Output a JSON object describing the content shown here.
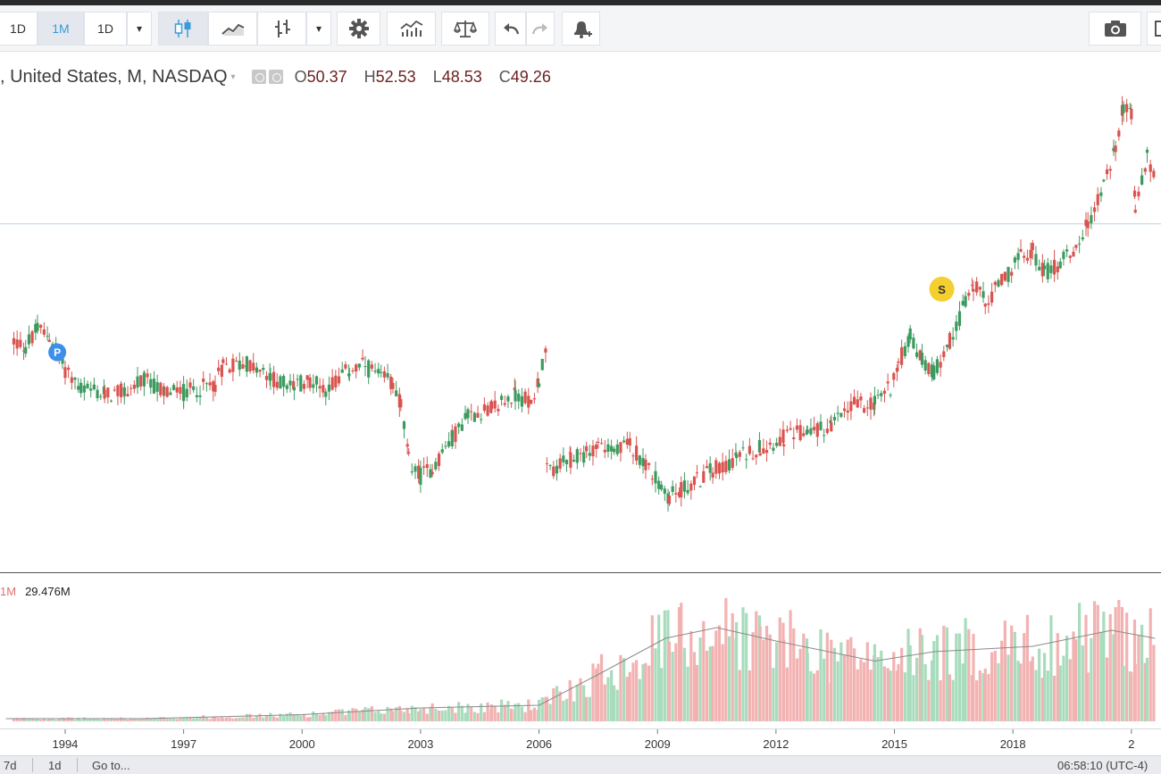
{
  "toolbar": {
    "interval_1": "1D",
    "interval_2": "1M",
    "interval_3": "1D",
    "dropdown_caret": "▾"
  },
  "legend": {
    "symbol": ", United States, M, NASDAQ",
    "caret": "▾",
    "open_key": "O",
    "open": "50.37",
    "high_key": "H",
    "high": "52.53",
    "low_key": "L",
    "low": "48.53",
    "close_key": "C",
    "close": "49.26"
  },
  "volume": {
    "key": "1M",
    "value": "29.476M"
  },
  "markers": {
    "p": "P",
    "s": "S"
  },
  "status": {
    "range_1": "7d",
    "range_2": "1d",
    "goto": "Go to...",
    "clock": "06:58:10 (UTC-4)"
  },
  "colors": {
    "up": "#3c9a5f",
    "down": "#d9534f",
    "vol_up": "#a8dcbc",
    "vol_down": "#f3b2b2",
    "hline": "#b7d3e6",
    "ma": "#8a8a8a",
    "marker_p": "#3d8fea",
    "marker_s": "#f3cf2f"
  },
  "chart_data": {
    "type": "candlestick",
    "x_ticks": [
      "1994",
      "1997",
      "2000",
      "2003",
      "2006",
      "2009",
      "2012",
      "2015",
      "2018",
      "2"
    ],
    "price_series": [
      {
        "year": 1992.7,
        "close": 30
      },
      {
        "year": 1993.0,
        "close": 29.5
      },
      {
        "year": 1993.3,
        "close": 31
      },
      {
        "year": 1993.6,
        "close": 30.5
      },
      {
        "year": 1994.0,
        "close": 27.5
      },
      {
        "year": 1994.4,
        "close": 25.8
      },
      {
        "year": 1995.0,
        "close": 25.2
      },
      {
        "year": 1995.5,
        "close": 25.5
      },
      {
        "year": 1996.0,
        "close": 26.5
      },
      {
        "year": 1996.5,
        "close": 25.5
      },
      {
        "year": 1997.0,
        "close": 25.4
      },
      {
        "year": 1997.8,
        "close": 26.2
      },
      {
        "year": 1998.0,
        "close": 27.8
      },
      {
        "year": 1998.6,
        "close": 28.0
      },
      {
        "year": 1999.2,
        "close": 26.6
      },
      {
        "year": 1999.8,
        "close": 26.0
      },
      {
        "year": 2000.2,
        "close": 26.6
      },
      {
        "year": 2000.6,
        "close": 25.8
      },
      {
        "year": 2001.2,
        "close": 27.4
      },
      {
        "year": 2001.6,
        "close": 27.8
      },
      {
        "year": 2002.0,
        "close": 26.6
      },
      {
        "year": 2002.3,
        "close": 26.4
      },
      {
        "year": 2002.5,
        "close": 24.4
      },
      {
        "year": 2002.7,
        "close": 19.4
      },
      {
        "year": 2003.0,
        "close": 18.0
      },
      {
        "year": 2003.3,
        "close": 18.8
      },
      {
        "year": 2003.8,
        "close": 21.4
      },
      {
        "year": 2004.2,
        "close": 23.4
      },
      {
        "year": 2004.8,
        "close": 24.0
      },
      {
        "year": 2005.4,
        "close": 25.2
      },
      {
        "year": 2005.8,
        "close": 24.6
      },
      {
        "year": 2006.0,
        "close": 26.6
      },
      {
        "year": 2006.2,
        "close": 29.6
      },
      {
        "year": 2006.3,
        "close": null
      },
      {
        "year": 2006.2,
        "close": 18.4
      },
      {
        "year": 2006.8,
        "close": 19.4
      },
      {
        "year": 2007.2,
        "close": 20.0
      },
      {
        "year": 2007.5,
        "close": 21.0
      },
      {
        "year": 2007.9,
        "close": 20.0
      },
      {
        "year": 2008.3,
        "close": 20.8
      },
      {
        "year": 2008.7,
        "close": 19.2
      },
      {
        "year": 2009.1,
        "close": 16.8
      },
      {
        "year": 2009.3,
        "close": 16.2
      },
      {
        "year": 2009.6,
        "close": 16.8
      },
      {
        "year": 2010.0,
        "close": 17.6
      },
      {
        "year": 2010.4,
        "close": 18.6
      },
      {
        "year": 2011.0,
        "close": 19.6
      },
      {
        "year": 2011.6,
        "close": 20.6
      },
      {
        "year": 2012.2,
        "close": 21.4
      },
      {
        "year": 2012.8,
        "close": 22.0
      },
      {
        "year": 2013.4,
        "close": 22.4
      },
      {
        "year": 2013.9,
        "close": 24.2
      },
      {
        "year": 2014.5,
        "close": 24.6
      },
      {
        "year": 2014.9,
        "close": 26.0
      },
      {
        "year": 2015.1,
        "close": 28.0
      },
      {
        "year": 2015.4,
        "close": 30.4
      },
      {
        "year": 2015.7,
        "close": 28.2
      },
      {
        "year": 2016.0,
        "close": 27.2
      },
      {
        "year": 2016.4,
        "close": 30.0
      },
      {
        "year": 2016.8,
        "close": 33.4
      },
      {
        "year": 2017.0,
        "close": 35.0
      },
      {
        "year": 2017.3,
        "close": 33.4
      },
      {
        "year": 2017.8,
        "close": 35.6
      },
      {
        "year": 2018.2,
        "close": 37.4
      },
      {
        "year": 2018.5,
        "close": 38.0
      },
      {
        "year": 2018.8,
        "close": 36.0
      },
      {
        "year": 2019.2,
        "close": 37.0
      },
      {
        "year": 2019.6,
        "close": 38.4
      },
      {
        "year": 2019.9,
        "close": 40.4
      },
      {
        "year": 2020.3,
        "close": 43.8
      },
      {
        "year": 2020.6,
        "close": 47.2
      },
      {
        "year": 2020.8,
        "close": 51.0
      },
      {
        "year": 2021.0,
        "close": 50.0
      },
      {
        "year": 2021.1,
        "close": 41.6
      },
      {
        "year": 2021.4,
        "close": 46.2
      },
      {
        "year": 2021.6,
        "close": 44.6
      }
    ],
    "volume_ma_relative": [
      {
        "year": 1992.5,
        "v": 0.02
      },
      {
        "year": 1996.0,
        "v": 0.02
      },
      {
        "year": 2000.0,
        "v": 0.05
      },
      {
        "year": 2003.0,
        "v": 0.1
      },
      {
        "year": 2006.0,
        "v": 0.12
      },
      {
        "year": 2007.5,
        "v": 0.35
      },
      {
        "year": 2009.2,
        "v": 0.62
      },
      {
        "year": 2010.5,
        "v": 0.7
      },
      {
        "year": 2012.0,
        "v": 0.6
      },
      {
        "year": 2014.5,
        "v": 0.45
      },
      {
        "year": 2016.0,
        "v": 0.52
      },
      {
        "year": 2018.5,
        "v": 0.56
      },
      {
        "year": 2020.5,
        "v": 0.68
      },
      {
        "year": 2021.6,
        "v": 0.62
      }
    ],
    "markers": [
      {
        "label": "P",
        "year": 1993.8,
        "close": 29.0
      },
      {
        "label": "S",
        "year": 2016.2,
        "close": 34.6
      }
    ],
    "reference_line": 40.4,
    "ylim": [
      11.3,
      52.5
    ],
    "xlim": [
      1992.35,
      2021.75
    ]
  }
}
